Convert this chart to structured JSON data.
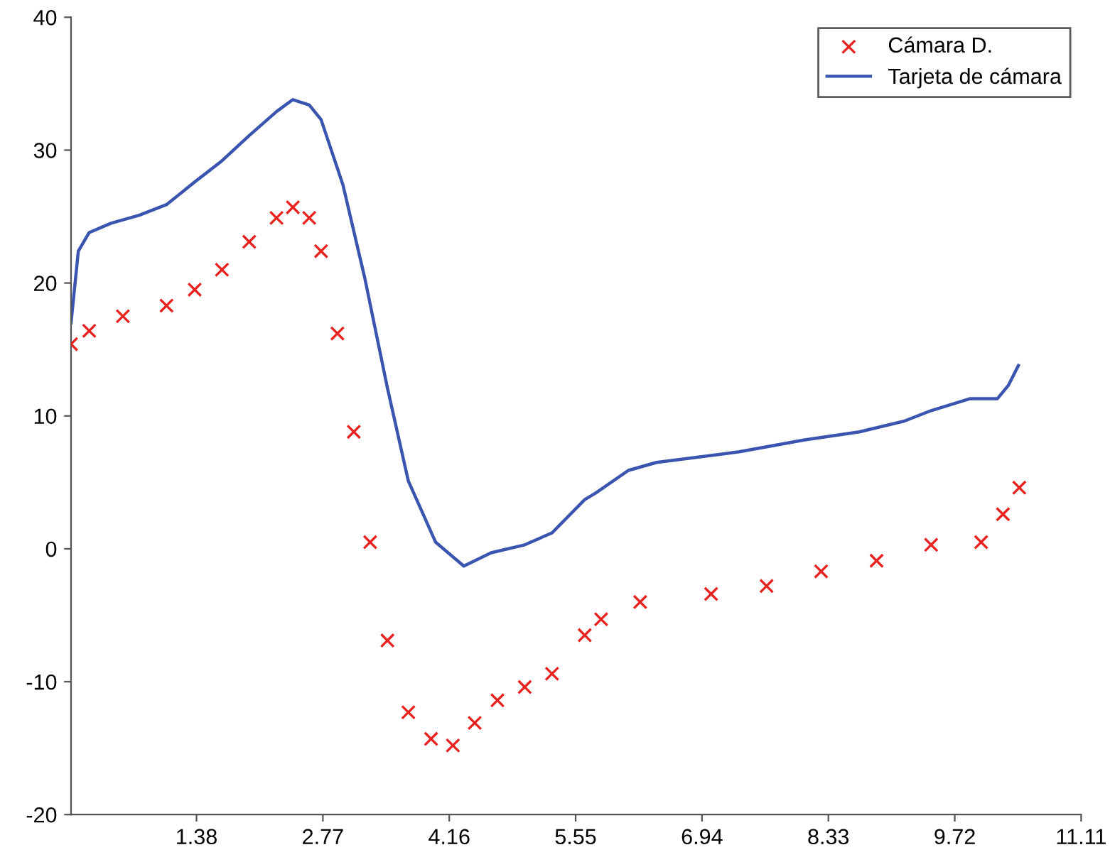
{
  "chart_data": {
    "type": "line",
    "xlim": [
      0,
      11.11
    ],
    "ylim": [
      -20,
      40
    ],
    "xticks": [
      1.38,
      2.77,
      4.16,
      5.55,
      6.94,
      8.33,
      9.72,
      11.11
    ],
    "yticks": [
      -20,
      -10,
      0,
      10,
      20,
      30,
      40
    ],
    "grid": false,
    "legend": "top right",
    "series": [
      {
        "name": "Cámara D.",
        "type": "scatter",
        "marker": "cross",
        "color": "#e8231f",
        "x": [
          0,
          0.2,
          0.57,
          1.05,
          1.36,
          1.66,
          1.96,
          2.26,
          2.44,
          2.62,
          2.75,
          2.93,
          3.11,
          3.29,
          3.48,
          3.71,
          3.96,
          4.2,
          4.44,
          4.69,
          4.99,
          5.29,
          5.65,
          5.83,
          6.26,
          7.04,
          7.65,
          8.25,
          8.86,
          9.46,
          10.01,
          10.25,
          10.43
        ],
        "values": [
          15.4,
          16.4,
          17.5,
          18.3,
          19.5,
          21.0,
          23.1,
          24.9,
          25.7,
          24.9,
          22.4,
          16.2,
          8.8,
          0.5,
          -6.9,
          -12.3,
          -14.3,
          -14.8,
          -13.1,
          -11.4,
          -10.4,
          -9.4,
          -6.5,
          -5.3,
          -4.0,
          -3.4,
          -2.8,
          -1.7,
          -0.9,
          0.3,
          0.5,
          2.6,
          4.6
        ]
      },
      {
        "name": "Tarjeta de cámara",
        "marker": "none",
        "color": "#3a55b0",
        "x": [
          0,
          0.08,
          0.2,
          0.44,
          0.75,
          1.05,
          1.36,
          1.66,
          1.96,
          2.26,
          2.44,
          2.62,
          2.75,
          2.99,
          3.23,
          3.48,
          3.71,
          4.01,
          4.32,
          4.62,
          4.99,
          5.29,
          5.65,
          5.77,
          6.13,
          6.44,
          7.35,
          8.07,
          8.67,
          9.16,
          9.46,
          9.89,
          10.19,
          10.31,
          10.42
        ],
        "values": [
          17.0,
          22.4,
          23.8,
          24.5,
          25.1,
          25.9,
          27.6,
          29.2,
          31.1,
          32.9,
          33.8,
          33.4,
          32.3,
          27.4,
          20.4,
          12.1,
          5.1,
          0.5,
          -1.3,
          -0.3,
          0.3,
          1.2,
          3.7,
          4.2,
          5.9,
          6.5,
          7.3,
          8.2,
          8.8,
          9.6,
          10.4,
          11.3,
          11.3,
          12.3,
          13.8
        ]
      }
    ]
  }
}
